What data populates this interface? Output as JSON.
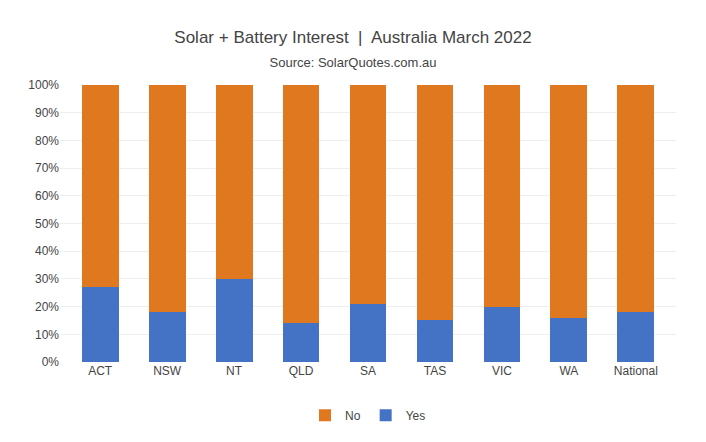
{
  "chart_data": {
    "type": "bar",
    "title": "Solar + Battery Interest  |  Australia March 2022",
    "subtitle": "Source: SolarQuotes.com.au",
    "categories": [
      "ACT",
      "NSW",
      "NT",
      "QLD",
      "SA",
      "TAS",
      "VIC",
      "WA",
      "National"
    ],
    "series": [
      {
        "name": "Yes",
        "color": "#4472C4",
        "values": [
          27,
          18,
          30,
          14,
          21,
          15,
          20,
          16,
          18
        ]
      },
      {
        "name": "No",
        "color": "#E07820",
        "values": [
          73,
          82,
          70,
          86,
          79,
          85,
          80,
          84,
          82
        ]
      }
    ],
    "stacked": true,
    "ylim": [
      0,
      100
    ],
    "yticks": [
      {
        "value": 0,
        "label": "0%"
      },
      {
        "value": 10,
        "label": "10%"
      },
      {
        "value": 20,
        "label": "20%"
      },
      {
        "value": 30,
        "label": "30%"
      },
      {
        "value": 40,
        "label": "40%"
      },
      {
        "value": 50,
        "label": "50%"
      },
      {
        "value": 60,
        "label": "60%"
      },
      {
        "value": 70,
        "label": "70%"
      },
      {
        "value": 80,
        "label": "80%"
      },
      {
        "value": 90,
        "label": "90%"
      },
      {
        "value": 100,
        "label": "100%"
      }
    ],
    "grid": true,
    "legend": "bottom"
  }
}
